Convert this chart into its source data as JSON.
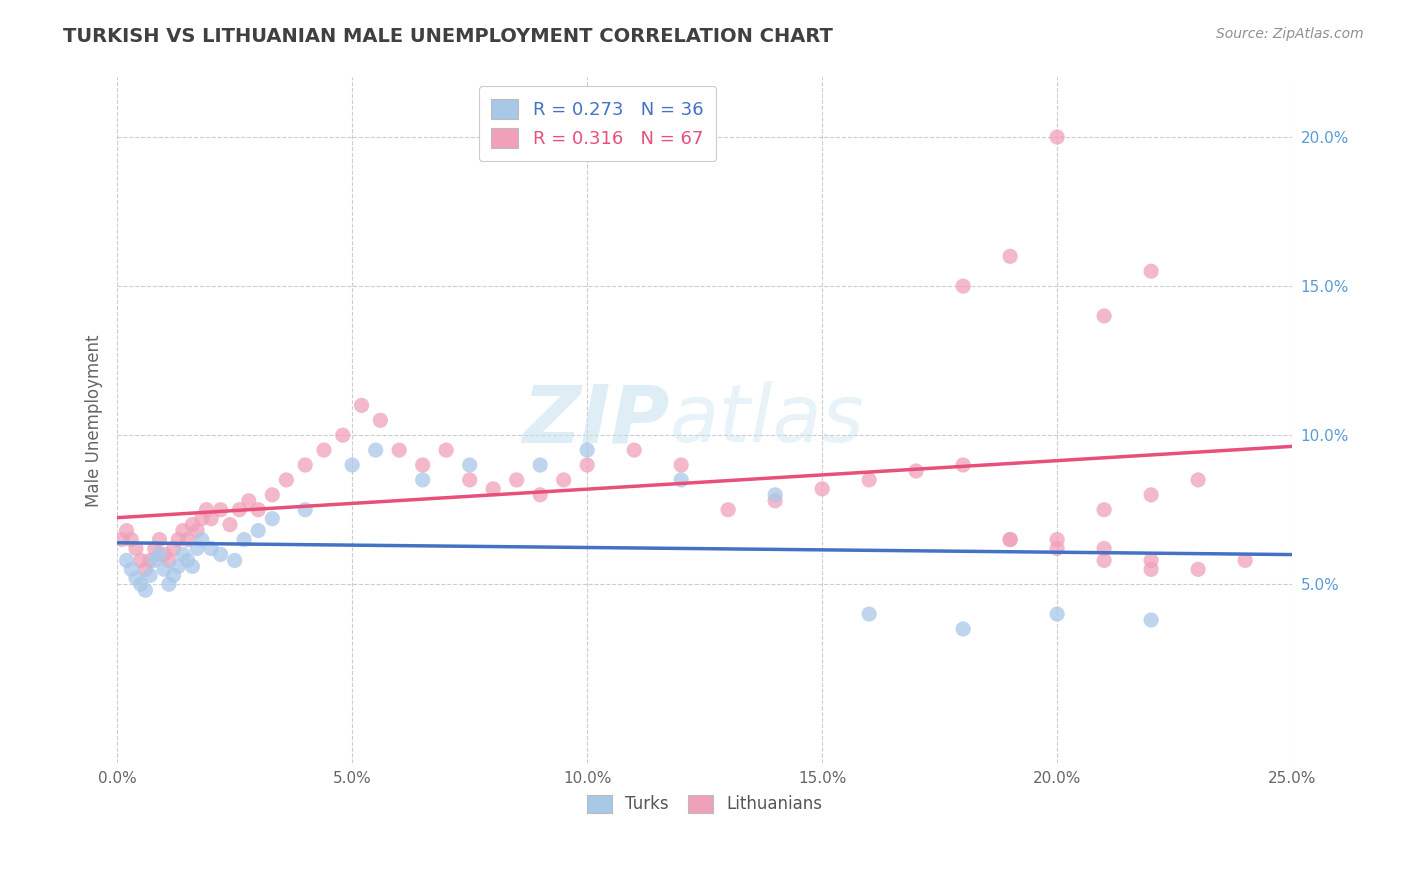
{
  "title": "TURKISH VS LITHUANIAN MALE UNEMPLOYMENT CORRELATION CHART",
  "source_text": "Source: ZipAtlas.com",
  "ylabel": "Male Unemployment",
  "watermark_text": "ZIPatlas",
  "xlim": [
    0.0,
    0.25
  ],
  "ylim": [
    -0.01,
    0.22
  ],
  "xtick_vals": [
    0.0,
    0.05,
    0.1,
    0.15,
    0.2,
    0.25
  ],
  "xtick_labels": [
    "0.0%",
    "5.0%",
    "10.0%",
    "15.0%",
    "20.0%",
    "25.0%"
  ],
  "ytick_vals": [
    0.05,
    0.1,
    0.15,
    0.2
  ],
  "ytick_labels": [
    "5.0%",
    "10.0%",
    "15.0%",
    "20.0%"
  ],
  "turks_R": 0.273,
  "turks_N": 36,
  "lith_R": 0.316,
  "lith_N": 67,
  "turks_color": "#a8c8e8",
  "lith_color": "#f0a0b8",
  "turks_line_color": "#4472c4",
  "lith_line_color": "#e8507a",
  "grid_color": "#cccccc",
  "background_color": "#ffffff",
  "title_color": "#404040",
  "source_color": "#909090",
  "tick_color": "#5b9bd5",
  "turks_x": [
    0.002,
    0.003,
    0.004,
    0.005,
    0.006,
    0.007,
    0.008,
    0.009,
    0.01,
    0.011,
    0.012,
    0.013,
    0.014,
    0.015,
    0.016,
    0.017,
    0.018,
    0.02,
    0.022,
    0.025,
    0.027,
    0.03,
    0.033,
    0.04,
    0.05,
    0.055,
    0.065,
    0.075,
    0.09,
    0.1,
    0.12,
    0.14,
    0.16,
    0.18,
    0.2,
    0.22
  ],
  "turks_y": [
    0.058,
    0.055,
    0.052,
    0.05,
    0.048,
    0.053,
    0.058,
    0.06,
    0.055,
    0.05,
    0.053,
    0.056,
    0.06,
    0.058,
    0.056,
    0.062,
    0.065,
    0.062,
    0.06,
    0.058,
    0.065,
    0.068,
    0.072,
    0.075,
    0.09,
    0.095,
    0.085,
    0.09,
    0.09,
    0.095,
    0.085,
    0.08,
    0.04,
    0.035,
    0.04,
    0.038
  ],
  "lith_x": [
    0.001,
    0.002,
    0.003,
    0.004,
    0.005,
    0.006,
    0.007,
    0.008,
    0.009,
    0.01,
    0.011,
    0.012,
    0.013,
    0.014,
    0.015,
    0.016,
    0.017,
    0.018,
    0.019,
    0.02,
    0.022,
    0.024,
    0.026,
    0.028,
    0.03,
    0.033,
    0.036,
    0.04,
    0.044,
    0.048,
    0.052,
    0.056,
    0.06,
    0.065,
    0.07,
    0.075,
    0.08,
    0.085,
    0.09,
    0.095,
    0.1,
    0.11,
    0.12,
    0.13,
    0.14,
    0.15,
    0.16,
    0.17,
    0.18,
    0.19,
    0.2,
    0.21,
    0.22,
    0.23,
    0.24,
    0.2,
    0.19,
    0.22,
    0.18,
    0.21,
    0.19,
    0.2,
    0.21,
    0.22,
    0.23,
    0.22,
    0.21
  ],
  "lith_y": [
    0.065,
    0.068,
    0.065,
    0.062,
    0.058,
    0.055,
    0.058,
    0.062,
    0.065,
    0.06,
    0.058,
    0.062,
    0.065,
    0.068,
    0.065,
    0.07,
    0.068,
    0.072,
    0.075,
    0.072,
    0.075,
    0.07,
    0.075,
    0.078,
    0.075,
    0.08,
    0.085,
    0.09,
    0.095,
    0.1,
    0.11,
    0.105,
    0.095,
    0.09,
    0.095,
    0.085,
    0.082,
    0.085,
    0.08,
    0.085,
    0.09,
    0.095,
    0.09,
    0.075,
    0.078,
    0.082,
    0.085,
    0.088,
    0.09,
    0.065,
    0.065,
    0.062,
    0.058,
    0.055,
    0.058,
    0.2,
    0.16,
    0.155,
    0.15,
    0.14,
    0.065,
    0.062,
    0.058,
    0.055,
    0.085,
    0.08,
    0.075
  ]
}
